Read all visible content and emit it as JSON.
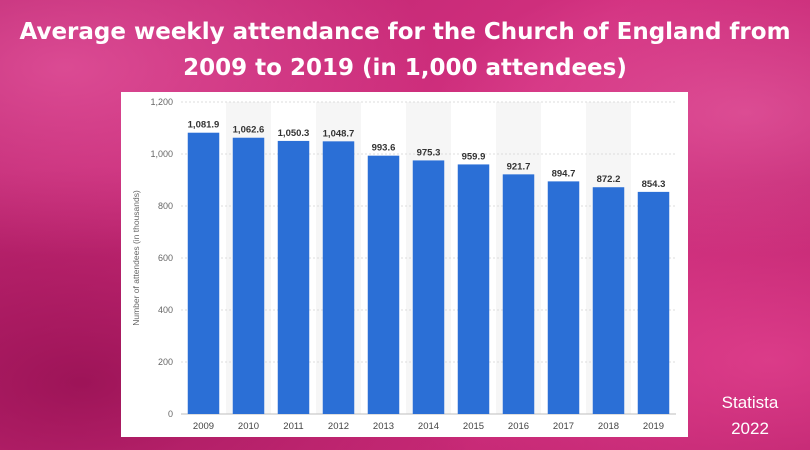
{
  "title_line1": "Average weekly attendance for the Church of England from",
  "title_line2": "2009 to 2019 (in 1,000 attendees)",
  "source_line1": "Statista",
  "source_line2": "2022",
  "colors": {
    "bar": "#2b6fd6",
    "background": "#c92a78",
    "panel": "#ffffff"
  },
  "chart_data": {
    "type": "bar",
    "categories": [
      "2009",
      "2010",
      "2011",
      "2012",
      "2013",
      "2014",
      "2015",
      "2016",
      "2017",
      "2018",
      "2019"
    ],
    "values": [
      1081.9,
      1062.6,
      1050.3,
      1048.7,
      993.6,
      975.3,
      959.9,
      921.7,
      894.7,
      872.2,
      854.3
    ],
    "value_labels": [
      "1,081.9",
      "1,062.6",
      "1,050.3",
      "1,048.7",
      "993.6",
      "975.3",
      "959.9",
      "921.7",
      "894.7",
      "872.2",
      "854.3"
    ],
    "ylabel": "Number of attendees (in thousands)",
    "ylim": [
      0,
      1200
    ],
    "yticks": [
      0,
      200,
      400,
      600,
      800,
      1000,
      1200
    ],
    "ytick_labels": [
      "0",
      "200",
      "400",
      "600",
      "800",
      "1,000",
      "1,200"
    ],
    "grid": true,
    "legend": "none"
  }
}
